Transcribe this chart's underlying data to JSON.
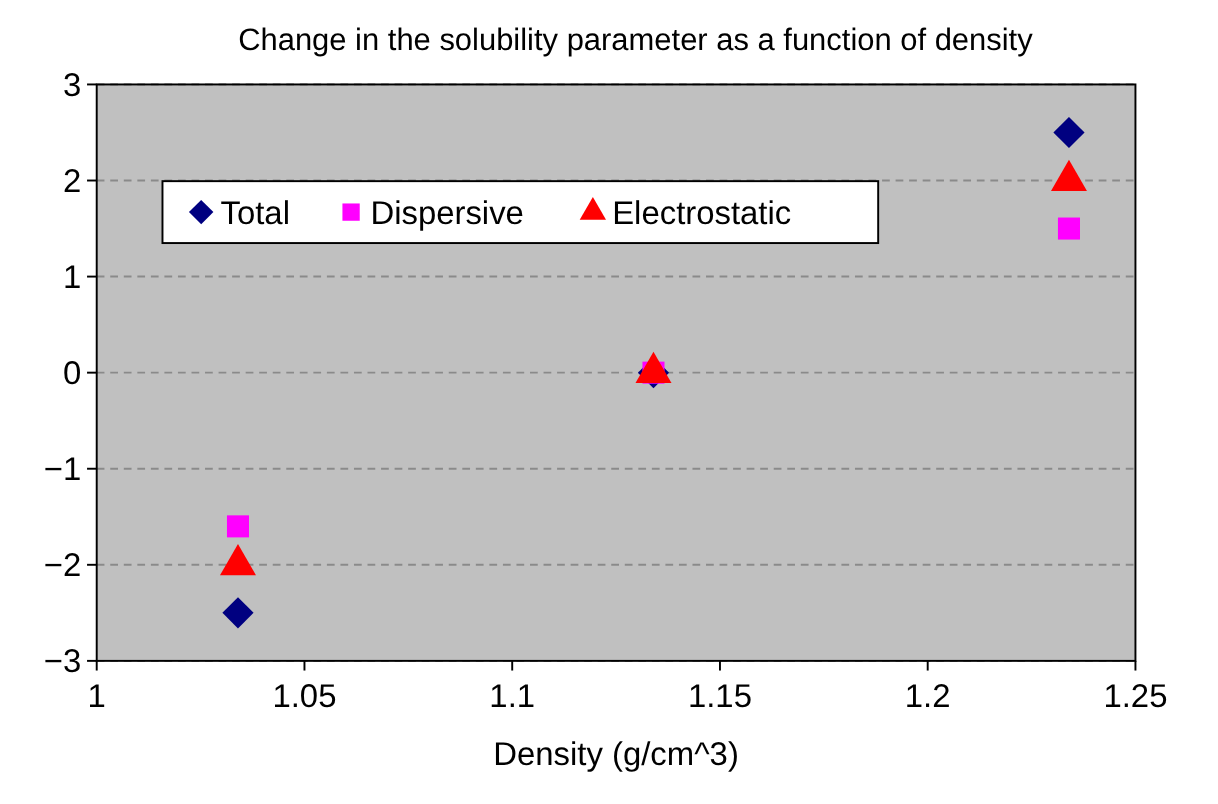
{
  "chart_data": {
    "type": "scatter",
    "title": "Change in the solubility parameter as a function of density",
    "xlabel": "Density (g/cm^3)",
    "x": [
      1.034,
      1.134,
      1.234
    ],
    "series": [
      {
        "name": "Total",
        "color": "#000080",
        "marker": "diamond",
        "values": [
          -2.5,
          0,
          2.5
        ]
      },
      {
        "name": "Dispersive",
        "color": "#ff00ff",
        "marker": "square",
        "values": [
          -1.6,
          0,
          1.5
        ]
      },
      {
        "name": "Electrostatic",
        "color": "#ff0000",
        "marker": "triangle",
        "values": [
          -2,
          0,
          2
        ]
      }
    ],
    "xlim": [
      1,
      1.25
    ],
    "xticks": [
      1,
      1.05,
      1.1,
      1.15,
      1.2,
      1.25
    ],
    "ylim": [
      -3,
      3
    ],
    "yticks": [
      {
        "value": -3,
        "label": "−3"
      },
      {
        "value": -2,
        "label": "−2"
      },
      {
        "value": -1,
        "label": "−1"
      },
      0,
      1,
      2,
      3
    ],
    "grid": "y",
    "legend": "top left"
  }
}
